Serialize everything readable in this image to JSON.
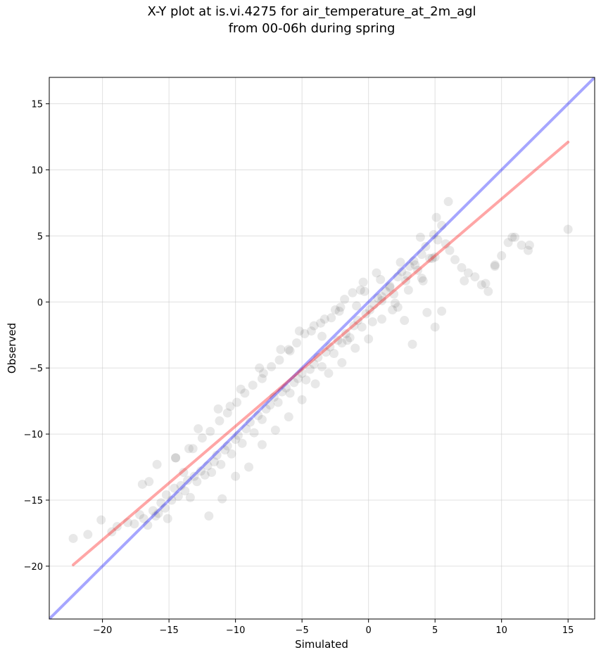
{
  "chart_data": {
    "type": "scatter",
    "title": [
      "X-Y plot at is.vi.4275 for air_temperature_at_2m_agl",
      "from 00-06h during spring"
    ],
    "xlabel": "Simulated",
    "ylabel": "Observed",
    "xlim": [
      -24,
      17
    ],
    "ylim": [
      -24,
      17
    ],
    "xticks": [
      -20,
      -15,
      -10,
      -5,
      0,
      5,
      10,
      15
    ],
    "yticks": [
      -20,
      -15,
      -10,
      -5,
      0,
      5,
      10,
      15
    ],
    "xtick_labels": [
      "−20",
      "−15",
      "−10",
      "−5",
      "0",
      "5",
      "10",
      "15"
    ],
    "ytick_labels": [
      "−20",
      "−15",
      "−10",
      "−5",
      "0",
      "5",
      "10",
      "15"
    ],
    "grid": true,
    "colors": {
      "points": "#000000",
      "one_to_one": "#0000ff",
      "fit": "#ff0000"
    },
    "lines": [
      {
        "x": [
          -24,
          17
        ],
        "y": [
          -24,
          17
        ]
      },
      {
        "x": [
          -22.2,
          15.0
        ],
        "y": [
          -19.9,
          12.1
        ]
      }
    ],
    "series": [
      {
        "x": [
          -22.2,
          -21.1,
          -20.1,
          -19.3,
          -18.9,
          -18.1,
          -17.6,
          -17.2,
          -16.9,
          -16.6,
          -16.2,
          -16.0,
          -15.8,
          -15.6,
          -15.3,
          -15.1,
          -14.8,
          -14.6,
          -14.3,
          -14.1,
          -13.8,
          -13.6,
          -13.4,
          -13.1,
          -12.9,
          -12.6,
          -12.3,
          -12.1,
          -11.8,
          -11.6,
          -11.4,
          -11.1,
          -10.8,
          -10.6,
          -10.3,
          -10.0,
          -9.8,
          -9.5,
          -9.2,
          -8.9,
          -8.6,
          -8.3,
          -8.0,
          -7.7,
          -7.4,
          -7.1,
          -6.8,
          -6.5,
          -6.2,
          -5.9,
          -5.6,
          -5.3,
          -5.0,
          -4.7,
          -4.4,
          -4.1,
          -3.8,
          -3.5,
          -3.2,
          -2.9,
          -2.6,
          -2.3,
          -2.0,
          -1.7,
          -1.4,
          -1.1,
          -0.8,
          -0.5,
          -0.2,
          0.1,
          0.4,
          0.7,
          1.0,
          1.3,
          1.6,
          1.9,
          2.2,
          2.5,
          2.8,
          3.1,
          3.4,
          3.7,
          4.0,
          4.3,
          4.6,
          4.9,
          5.2,
          5.5,
          5.8,
          6.1,
          6.5,
          7.0,
          7.5,
          8.0,
          8.5,
          9.0,
          9.5,
          10.0,
          10.5,
          11.0,
          11.5,
          12.0,
          15.0,
          -16.5,
          -15.9,
          -15.2,
          -14.5,
          -13.9,
          -13.2,
          -12.5,
          -11.9,
          -11.2,
          -10.6,
          -9.9,
          -9.3,
          -8.7,
          -8.0,
          -7.3,
          -6.7,
          -6.0,
          -5.4,
          -4.8,
          -4.1,
          -3.5,
          -2.8,
          -2.2,
          -1.6,
          -0.9,
          -0.3,
          0.3,
          1.0,
          1.6,
          2.2,
          2.9,
          3.5,
          4.1,
          4.8,
          -12.0,
          -11.0,
          -10.0,
          -9.0,
          -8.0,
          -7.0,
          -6.0,
          -5.0,
          -4.0,
          -3.0,
          -2.0,
          -1.0,
          0.0,
          1.0,
          2.0,
          3.0,
          4.0,
          5.0,
          -14.5,
          -12.8,
          -11.3,
          -9.6,
          -8.2,
          -6.6,
          -5.2,
          -3.6,
          -2.1,
          -0.6,
          0.9,
          2.4,
          3.9,
          5.1,
          6.0,
          -17.0,
          -13.5,
          -10.4,
          -7.9,
          -5.9,
          -4.3,
          -3.3,
          -2.5,
          -1.8,
          -1.2,
          -0.4,
          0.6,
          1.8,
          2.7,
          3.3,
          4.4,
          5.0,
          5.5,
          7.2,
          8.8,
          9.5,
          10.8,
          12.1
        ],
        "y": [
          -17.9,
          -17.6,
          -16.5,
          -17.4,
          -17.0,
          -16.7,
          -16.8,
          -16.1,
          -16.4,
          -16.9,
          -15.8,
          -16.2,
          -16.0,
          -15.2,
          -15.6,
          -16.4,
          -15.0,
          -14.1,
          -14.7,
          -13.9,
          -14.3,
          -13.5,
          -14.8,
          -13.2,
          -13.6,
          -12.8,
          -13.1,
          -12.4,
          -12.9,
          -12.1,
          -11.6,
          -12.3,
          -11.2,
          -10.9,
          -11.5,
          -10.4,
          -10.1,
          -10.7,
          -9.6,
          -9.1,
          -9.9,
          -8.6,
          -8.9,
          -8.1,
          -7.8,
          -7.2,
          -7.6,
          -6.8,
          -6.5,
          -6.9,
          -6.1,
          -5.8,
          -5.4,
          -5.9,
          -5.1,
          -4.7,
          -4.2,
          -4.9,
          -3.8,
          -3.4,
          -3.9,
          -2.9,
          -3.1,
          -2.4,
          -2.7,
          -1.8,
          -1.4,
          -1.9,
          -0.9,
          -0.6,
          -0.2,
          0.3,
          0.1,
          0.8,
          1.2,
          0.6,
          1.9,
          2.3,
          1.6,
          2.7,
          3.1,
          2.4,
          3.6,
          4.2,
          3.3,
          5.1,
          4.7,
          5.8,
          4.4,
          3.9,
          3.2,
          2.6,
          2.2,
          1.9,
          1.3,
          0.8,
          2.7,
          3.5,
          4.5,
          4.9,
          4.3,
          3.9,
          5.5,
          -13.6,
          -12.3,
          -14.6,
          -11.8,
          -12.9,
          -11.1,
          -10.3,
          -9.8,
          -9.0,
          -8.4,
          -7.6,
          -6.9,
          -6.3,
          -5.8,
          -4.9,
          -4.4,
          -3.6,
          -3.1,
          -2.4,
          -1.8,
          -2.6,
          -1.2,
          -0.7,
          -2.9,
          -0.3,
          0.8,
          -1.5,
          0.4,
          1.1,
          -0.4,
          2.0,
          2.8,
          1.6,
          3.3,
          -16.2,
          -14.9,
          -13.2,
          -12.5,
          -10.8,
          -9.7,
          -8.7,
          -7.4,
          -6.2,
          -5.4,
          -4.6,
          -3.5,
          -2.8,
          -1.3,
          -0.1,
          0.9,
          1.8,
          3.4,
          -11.8,
          -9.6,
          -8.1,
          -6.6,
          -5.0,
          -3.6,
          -2.2,
          -1.6,
          -0.4,
          0.9,
          1.7,
          3.0,
          4.9,
          6.4,
          7.6,
          -13.8,
          -11.1,
          -7.9,
          -5.4,
          -3.7,
          -2.2,
          -1.3,
          -0.6,
          0.2,
          0.7,
          1.5,
          2.2,
          -0.6,
          -1.4,
          -3.2,
          -0.8,
          -1.9,
          -0.7,
          1.6,
          1.4,
          2.8,
          4.9,
          4.3
        ]
      }
    ]
  }
}
